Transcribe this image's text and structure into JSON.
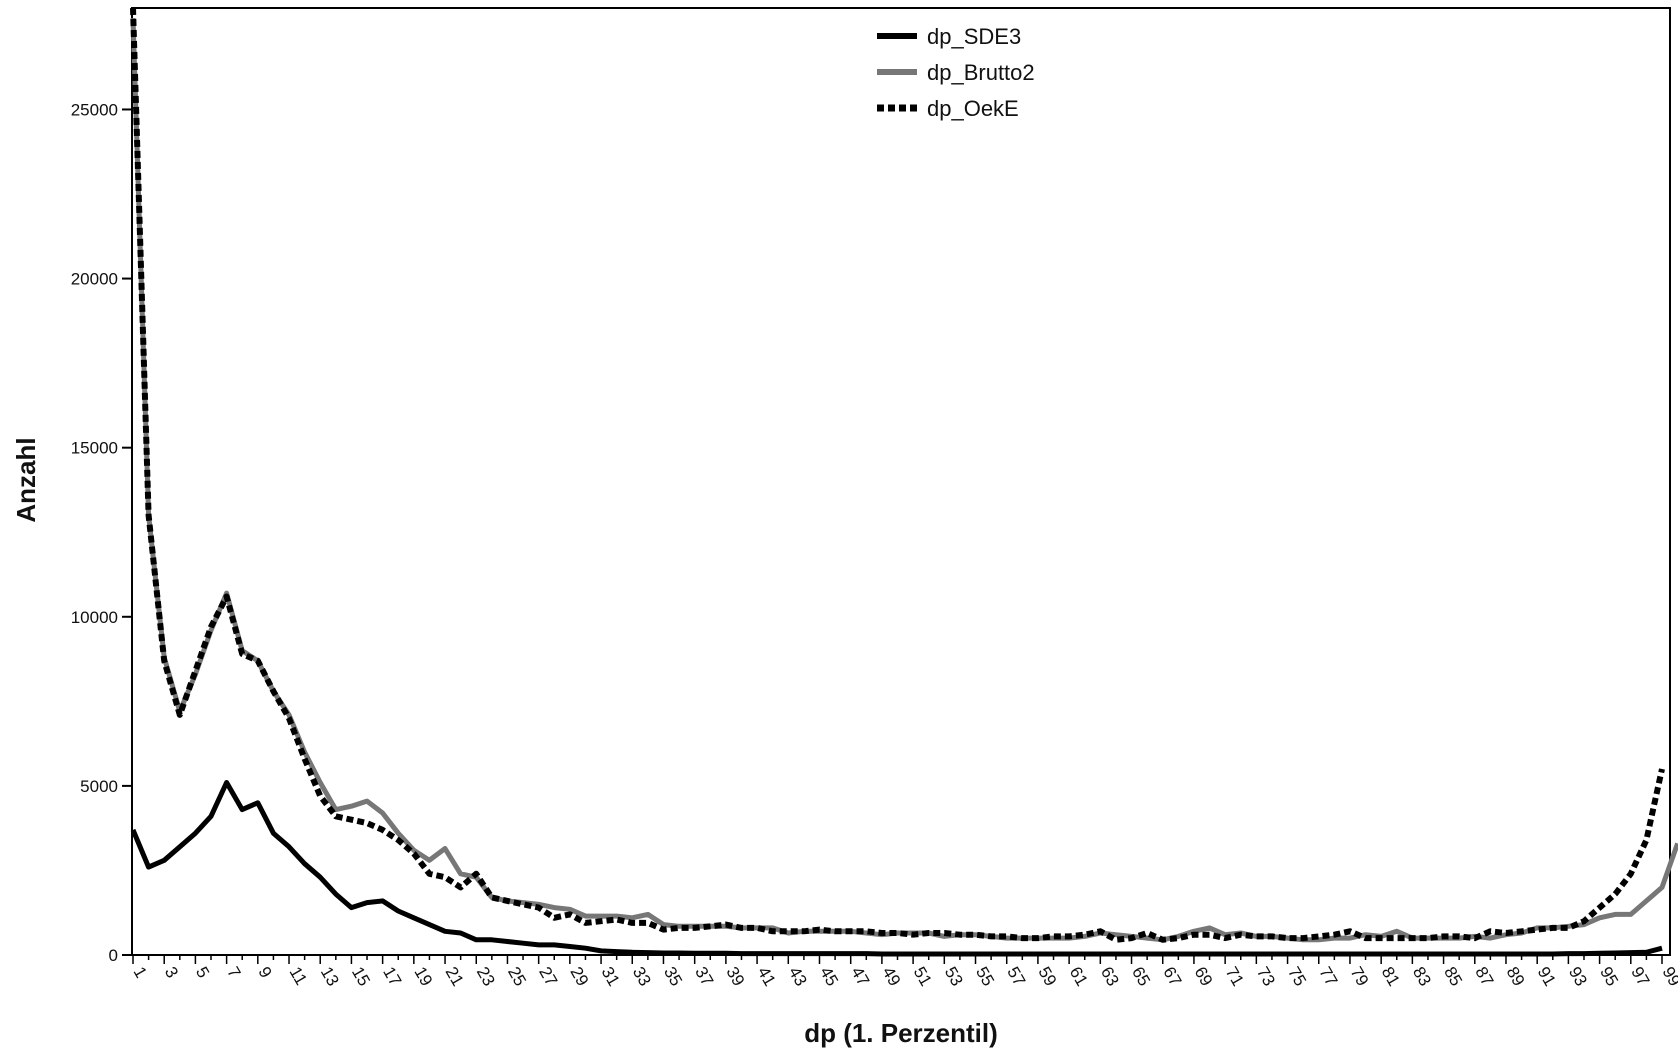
{
  "chart_data": {
    "type": "line",
    "title": "",
    "xlabel": "dp (1. Perzentil)",
    "ylabel": "Anzahl",
    "xlim": [
      1,
      99
    ],
    "ylim": [
      0,
      28000
    ],
    "yticks": [
      0,
      5000,
      10000,
      15000,
      20000,
      25000
    ],
    "ytick_labels": [
      "0",
      "5000",
      "10000",
      "15000",
      "20000",
      "25000"
    ],
    "xticks": [
      1,
      3,
      5,
      7,
      9,
      11,
      13,
      15,
      17,
      19,
      21,
      23,
      25,
      27,
      29,
      31,
      33,
      35,
      37,
      39,
      41,
      43,
      45,
      47,
      49,
      51,
      53,
      55,
      57,
      59,
      61,
      63,
      65,
      67,
      69,
      71,
      73,
      75,
      77,
      79,
      81,
      83,
      85,
      87,
      89,
      91,
      93,
      95,
      97,
      99
    ],
    "xtick_labels": [
      "1",
      "3",
      "5",
      "7",
      "9",
      "11",
      "13",
      "15",
      "17",
      "19",
      "21",
      "23",
      "25",
      "27",
      "29",
      "31",
      "33",
      "35",
      "37",
      "39",
      "41",
      "43",
      "45",
      "47",
      "49",
      "51",
      "53",
      "55",
      "57",
      "59",
      "61",
      "63",
      "65",
      "67",
      "69",
      "71",
      "73",
      "75",
      "77",
      "79",
      "81",
      "83",
      "85",
      "87",
      "89",
      "91",
      "93",
      "95",
      "97",
      "99"
    ],
    "grid": false,
    "legend_position": "top-center",
    "series": [
      {
        "name": "dp_SDE3",
        "color": "#000000",
        "style": "solid",
        "values": [
          3700,
          2600,
          2800,
          3200,
          3600,
          4100,
          5100,
          4300,
          4500,
          3600,
          3200,
          2700,
          2300,
          1800,
          1400,
          1550,
          1600,
          1300,
          1100,
          900,
          700,
          650,
          450,
          450,
          400,
          350,
          300,
          300,
          250,
          200,
          120,
          100,
          80,
          70,
          60,
          60,
          50,
          50,
          50,
          40,
          40,
          40,
          40,
          40,
          40,
          40,
          40,
          40,
          30,
          30,
          30,
          30,
          30,
          30,
          30,
          30,
          30,
          30,
          30,
          30,
          30,
          30,
          30,
          30,
          30,
          30,
          30,
          30,
          30,
          30,
          30,
          30,
          30,
          30,
          30,
          30,
          30,
          30,
          30,
          30,
          30,
          30,
          30,
          30,
          30,
          30,
          30,
          30,
          30,
          30,
          30,
          30,
          40,
          40,
          50,
          60,
          70,
          80,
          200
        ]
      },
      {
        "name": "dp_Brutto2",
        "color": "#777777",
        "style": "solid",
        "values": [
          27700,
          13000,
          8800,
          7200,
          8300,
          9600,
          10700,
          9000,
          8700,
          7800,
          7100,
          6000,
          5100,
          4300,
          4400,
          4550,
          4200,
          3600,
          3100,
          2800,
          3150,
          2400,
          2300,
          1700,
          1600,
          1550,
          1500,
          1400,
          1350,
          1150,
          1150,
          1150,
          1100,
          1200,
          900,
          850,
          850,
          850,
          850,
          800,
          800,
          800,
          650,
          700,
          700,
          700,
          700,
          650,
          600,
          650,
          650,
          650,
          550,
          600,
          600,
          550,
          500,
          500,
          500,
          500,
          500,
          550,
          650,
          600,
          550,
          500,
          450,
          550,
          700,
          800,
          600,
          650,
          550,
          550,
          500,
          450,
          450,
          500,
          500,
          600,
          550,
          700,
          500,
          500,
          500,
          500,
          550,
          500,
          600,
          650,
          800,
          800,
          850,
          900,
          1100,
          1200,
          1200,
          1600,
          2000,
          3300
        ]
      },
      {
        "name": "dp_OekE",
        "color": "#000000",
        "style": "dashed",
        "values": [
          28000,
          13000,
          8700,
          7100,
          8400,
          9700,
          10600,
          8900,
          8700,
          7800,
          7000,
          5800,
          4700,
          4100,
          4000,
          3900,
          3700,
          3400,
          3000,
          2400,
          2300,
          2000,
          2400,
          1700,
          1600,
          1500,
          1400,
          1100,
          1200,
          950,
          1000,
          1050,
          950,
          950,
          750,
          800,
          800,
          850,
          900,
          800,
          800,
          700,
          700,
          700,
          750,
          700,
          700,
          700,
          650,
          650,
          600,
          650,
          650,
          600,
          600,
          550,
          550,
          500,
          500,
          550,
          550,
          600,
          700,
          450,
          500,
          650,
          450,
          500,
          600,
          600,
          500,
          600,
          550,
          550,
          500,
          500,
          550,
          600,
          700,
          500,
          500,
          500,
          500,
          500,
          550,
          550,
          500,
          700,
          650,
          700,
          750,
          800,
          800,
          1000,
          1400,
          1800,
          2400,
          3400,
          5500
        ]
      }
    ]
  }
}
